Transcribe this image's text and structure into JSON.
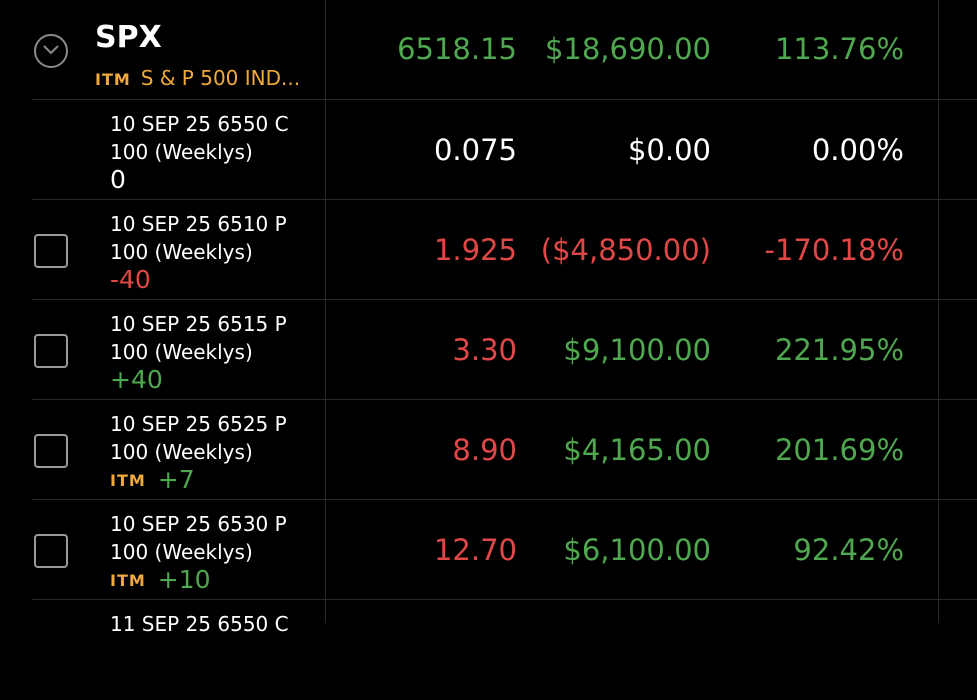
{
  "underlying": {
    "symbol": "SPX",
    "itm_badge": "ITM",
    "name": "S & P 500 IND...",
    "price": "6518.15",
    "value": "$18,690.00",
    "pct": "113.76%"
  },
  "positions": [
    {
      "line1": "10 SEP 25 6550 C",
      "line2": "100 (Weeklys)",
      "badge": "",
      "qty": "0",
      "qty_color": "white",
      "price": "0.075",
      "price_color": "white",
      "value": "$0.00",
      "value_color": "white",
      "pct": "0.00%",
      "pct_color": "white",
      "has_checkbox": false
    },
    {
      "line1": "10 SEP 25 6510 P",
      "line2": "100 (Weeklys)",
      "badge": "",
      "qty": "-40",
      "qty_color": "red",
      "price": "1.925",
      "price_color": "red",
      "value": "($4,850.00)",
      "value_color": "red",
      "pct": "-170.18%",
      "pct_color": "red",
      "has_checkbox": true
    },
    {
      "line1": "10 SEP 25 6515 P",
      "line2": "100 (Weeklys)",
      "badge": "",
      "qty": "+40",
      "qty_color": "green",
      "price": "3.30",
      "price_color": "red",
      "value": "$9,100.00",
      "value_color": "green",
      "pct": "221.95%",
      "pct_color": "green",
      "has_checkbox": true
    },
    {
      "line1": "10 SEP 25 6525 P",
      "line2": "100 (Weeklys)",
      "badge": "ITM",
      "qty": "+7",
      "qty_color": "green",
      "price": "8.90",
      "price_color": "red",
      "value": "$4,165.00",
      "value_color": "green",
      "pct": "201.69%",
      "pct_color": "green",
      "has_checkbox": true
    },
    {
      "line1": "10 SEP 25 6530 P",
      "line2": "100 (Weeklys)",
      "badge": "ITM",
      "qty": "+10",
      "qty_color": "green",
      "price": "12.70",
      "price_color": "red",
      "value": "$6,100.00",
      "value_color": "green",
      "pct": "92.42%",
      "pct_color": "green",
      "has_checkbox": true
    }
  ],
  "partial_row": {
    "line1": "11 SEP 25 6550 C"
  },
  "icons": {
    "expand": "chevron-down-circle-icon",
    "select": "checkbox-icon"
  },
  "colors": {
    "green": "#4fa84f",
    "red": "#e04848",
    "itm": "#f0a93b",
    "background": "#000000"
  }
}
